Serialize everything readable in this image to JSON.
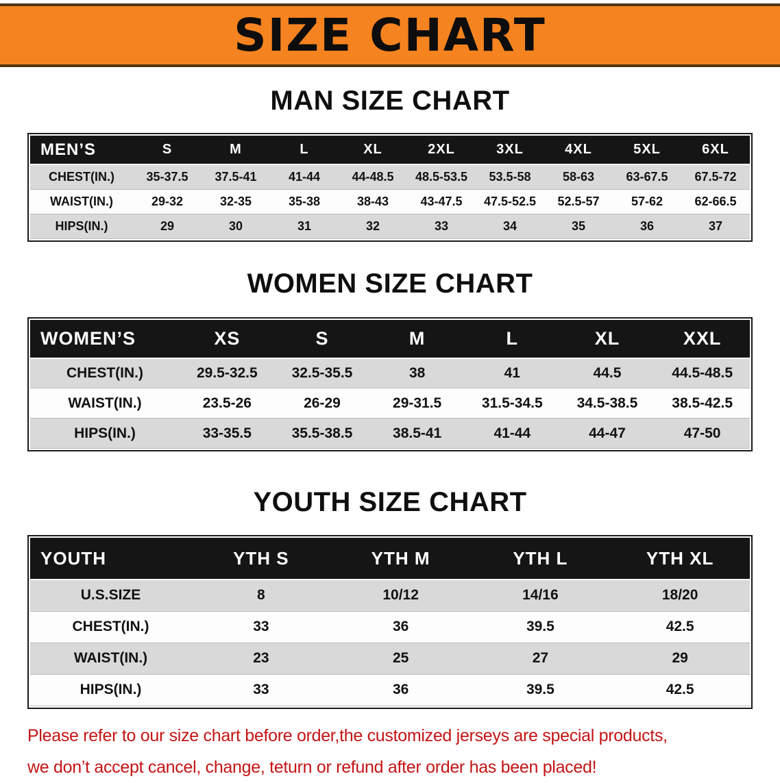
{
  "banner": {
    "title": "SIZE CHART"
  },
  "colors": {
    "banner_orange": "#f5831f",
    "header_black": "#151515",
    "row_gray": "#d9d9d9",
    "notice_red": "#c41414"
  },
  "chart_data": [
    {
      "type": "table",
      "title": "MAN SIZE CHART",
      "header": [
        "MEN’S",
        "S",
        "M",
        "L",
        "XL",
        "2XL",
        "3XL",
        "4XL",
        "5XL",
        "6XL"
      ],
      "rows": [
        [
          "CHEST(IN.)",
          "35-37.5",
          "37.5-41",
          "41-44",
          "44-48.5",
          "48.5-53.5",
          "53.5-58",
          "58-63",
          "63-67.5",
          "67.5-72"
        ],
        [
          "WAIST(IN.)",
          "29-32",
          "32-35",
          "35-38",
          "38-43",
          "43-47.5",
          "47.5-52.5",
          "52.5-57",
          "57-62",
          "62-66.5"
        ],
        [
          "HIPS(IN.)",
          "29",
          "30",
          "31",
          "32",
          "33",
          "34",
          "35",
          "36",
          "37"
        ]
      ]
    },
    {
      "type": "table",
      "title": "WOMEN SIZE CHART",
      "header": [
        "WOMEN’S",
        "XS",
        "S",
        "M",
        "L",
        "XL",
        "XXL"
      ],
      "rows": [
        [
          "CHEST(IN.)",
          "29.5-32.5",
          "32.5-35.5",
          "38",
          "41",
          "44.5",
          "44.5-48.5"
        ],
        [
          "WAIST(IN.)",
          "23.5-26",
          "26-29",
          "29-31.5",
          "31.5-34.5",
          "34.5-38.5",
          "38.5-42.5"
        ],
        [
          "HIPS(IN.)",
          "33-35.5",
          "35.5-38.5",
          "38.5-41",
          "41-44",
          "44-47",
          "47-50"
        ]
      ]
    },
    {
      "type": "table",
      "title": "YOUTH SIZE CHART",
      "header": [
        "YOUTH",
        "YTH S",
        "YTH M",
        "YTH L",
        "YTH XL"
      ],
      "rows": [
        [
          "U.S.SIZE",
          "8",
          "10/12",
          "14/16",
          "18/20"
        ],
        [
          "CHEST(IN.)",
          "33",
          "36",
          "39.5",
          "42.5"
        ],
        [
          "WAIST(IN.)",
          "23",
          "25",
          "27",
          "29"
        ],
        [
          "HIPS(IN.)",
          "33",
          "36",
          "39.5",
          "42.5"
        ]
      ]
    }
  ],
  "footer": {
    "line1": "Please refer to our size chart before order,the customized jerseys are special products,",
    "line2": "we don’t accept cancel, change, teturn or refund after order has been placed!"
  }
}
